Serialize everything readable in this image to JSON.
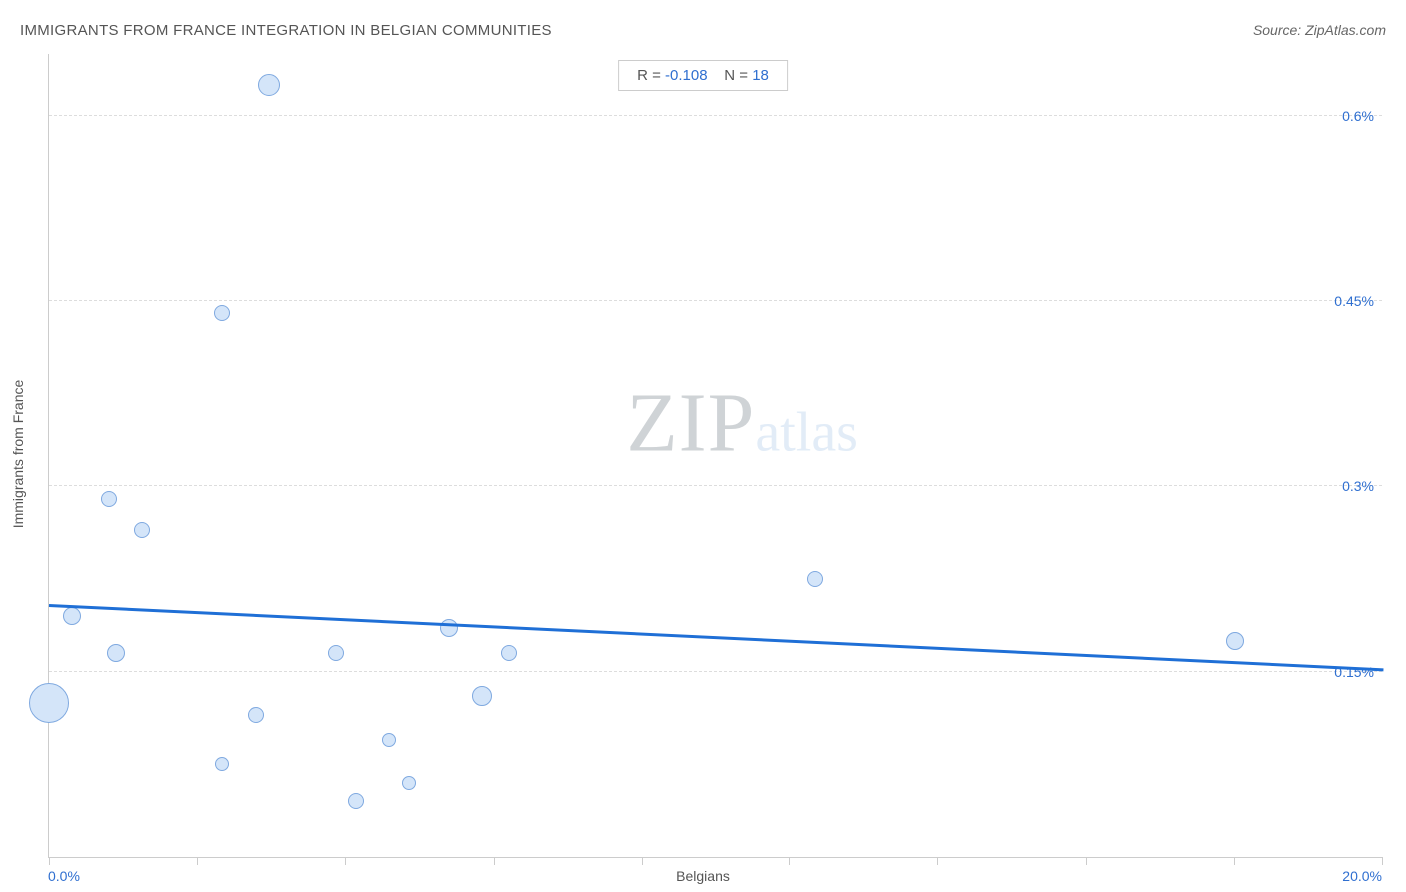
{
  "header": {
    "title": "IMMIGRANTS FROM FRANCE INTEGRATION IN BELGIAN COMMUNITIES",
    "source": "Source: ZipAtlas.com"
  },
  "chart": {
    "type": "scatter",
    "x_axis": {
      "label": "Belgians",
      "min": 0.0,
      "max": 20.0,
      "min_label": "0.0%",
      "max_label": "20.0%",
      "tick_positions": [
        0,
        2.22,
        4.44,
        6.67,
        8.89,
        11.11,
        13.33,
        15.56,
        17.78,
        20.0
      ],
      "tick_color": "#cccccc"
    },
    "y_axis": {
      "label": "Immigrants from France",
      "min": 0.0,
      "max": 0.65,
      "ticks": [
        {
          "value": 0.15,
          "label": "0.15%"
        },
        {
          "value": 0.3,
          "label": "0.3%"
        },
        {
          "value": 0.45,
          "label": "0.45%"
        },
        {
          "value": 0.6,
          "label": "0.6%"
        }
      ],
      "label_color": "#2f6fd0",
      "grid_color": "#dddddd"
    },
    "points": [
      {
        "x": 0.0,
        "y": 0.125,
        "r": 20
      },
      {
        "x": 0.35,
        "y": 0.195,
        "r": 9
      },
      {
        "x": 0.9,
        "y": 0.29,
        "r": 8
      },
      {
        "x": 1.0,
        "y": 0.165,
        "r": 9
      },
      {
        "x": 1.4,
        "y": 0.265,
        "r": 8
      },
      {
        "x": 2.6,
        "y": 0.44,
        "r": 8
      },
      {
        "x": 2.6,
        "y": 0.075,
        "r": 7
      },
      {
        "x": 3.1,
        "y": 0.115,
        "r": 8
      },
      {
        "x": 3.3,
        "y": 0.625,
        "r": 11
      },
      {
        "x": 4.3,
        "y": 0.165,
        "r": 8
      },
      {
        "x": 4.6,
        "y": 0.045,
        "r": 8
      },
      {
        "x": 5.1,
        "y": 0.095,
        "r": 7
      },
      {
        "x": 5.4,
        "y": 0.06,
        "r": 7
      },
      {
        "x": 6.0,
        "y": 0.185,
        "r": 9
      },
      {
        "x": 6.5,
        "y": 0.13,
        "r": 10
      },
      {
        "x": 6.9,
        "y": 0.165,
        "r": 8
      },
      {
        "x": 11.5,
        "y": 0.225,
        "r": 8
      },
      {
        "x": 17.8,
        "y": 0.175,
        "r": 9
      }
    ],
    "point_fill": "#d4e5f9",
    "point_stroke": "#7fa9e0",
    "trend": {
      "y_at_xmin": 0.205,
      "y_at_xmax": 0.153,
      "color": "#1f6fd6",
      "width": 3
    },
    "stats": {
      "r_label": "R = ",
      "r_value": "-0.108",
      "n_label": "N = ",
      "n_value": "18"
    },
    "watermark": {
      "big": "ZIP",
      "small": "atlas",
      "big_color": "#cfd3d6",
      "small_color": "#e2ecf7"
    },
    "background_color": "#ffffff",
    "border_color": "#cccccc"
  }
}
